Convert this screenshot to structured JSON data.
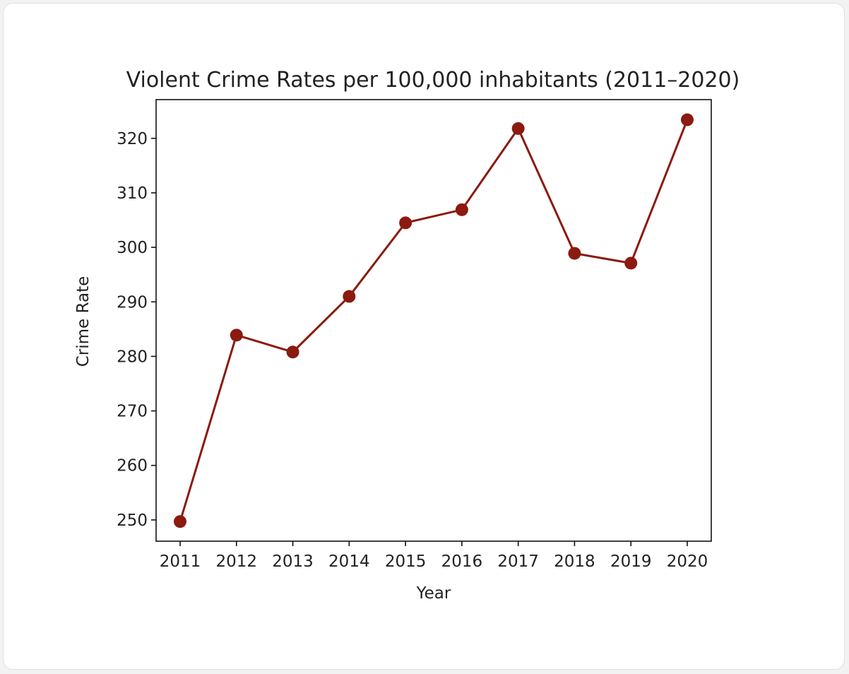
{
  "chart_data": {
    "type": "line",
    "title": "Violent Crime Rates per 100,000 inhabitants (2011–2020)",
    "xlabel": "Year",
    "ylabel": "Crime Rate",
    "x": [
      "2011",
      "2012",
      "2013",
      "2014",
      "2015",
      "2016",
      "2017",
      "2018",
      "2019",
      "2020"
    ],
    "series": [
      {
        "values": [
          249.7,
          283.9,
          280.8,
          291.0,
          304.5,
          306.9,
          321.8,
          298.9,
          297.1,
          323.4
        ]
      }
    ],
    "yticks": [
      250,
      260,
      270,
      280,
      290,
      300,
      310,
      320
    ],
    "ylim": [
      246.1,
      327.1
    ],
    "grid": false,
    "marker": "circle",
    "color": "#8b1a10"
  }
}
